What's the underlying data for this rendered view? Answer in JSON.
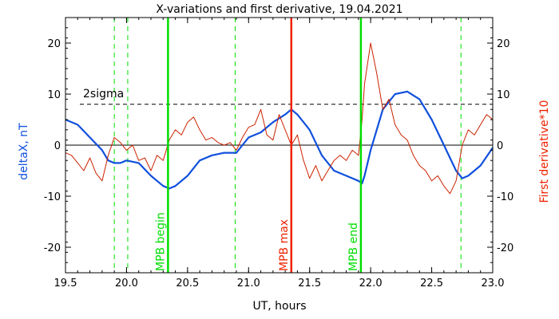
{
  "chart_data": {
    "type": "line",
    "title": "X-variations and first derivative, 19.04.2021",
    "xlabel": "UT, hours",
    "ylabel_left": "deltaX, nT",
    "ylabel_right": "First derivative*10",
    "xlim": [
      19.5,
      23.0
    ],
    "ylim": [
      -25,
      25
    ],
    "x_ticks": [
      "19.5",
      "20.0",
      "20.5",
      "21.0",
      "21.5",
      "22.0",
      "22.5",
      "23.0"
    ],
    "y_ticks_left": [
      "20",
      "10",
      "0",
      "-10",
      "-20"
    ],
    "y_ticks_right": [
      "20",
      "10",
      "0",
      "-10",
      "-20"
    ],
    "sigma_label": "2sigma",
    "sigma_value": 8,
    "zero_line": 0,
    "markers": [
      {
        "label": "MPB begin",
        "x": 20.34,
        "color": "#00dd00"
      },
      {
        "label": "MPB max",
        "x": 21.35,
        "color": "#ee2200"
      },
      {
        "label": "MPB end",
        "x": 21.92,
        "color": "#00dd00"
      }
    ],
    "dashed_verticals": [
      19.9,
      20.01,
      20.89,
      22.74
    ],
    "series": [
      {
        "color": "#1050dd",
        "x": [
          19.5,
          19.6,
          19.7,
          19.8,
          19.85,
          19.9,
          19.95,
          20.0,
          20.1,
          20.2,
          20.3,
          20.35,
          20.4,
          20.5,
          20.6,
          20.7,
          20.8,
          20.9,
          20.95,
          21.0,
          21.1,
          21.2,
          21.3,
          21.35,
          21.4,
          21.5,
          21.6,
          21.7,
          21.8,
          21.9,
          21.93,
          21.95,
          22.0,
          22.1,
          22.2,
          22.3,
          22.4,
          22.5,
          22.6,
          22.7,
          22.75,
          22.8,
          22.9,
          23.0
        ],
        "values": [
          5,
          4,
          1.5,
          -1,
          -3,
          -3.5,
          -3.5,
          -3,
          -3.5,
          -6,
          -8,
          -8.5,
          -8,
          -6,
          -3,
          -2,
          -1.5,
          -1.5,
          0,
          1.5,
          2.5,
          4.5,
          6,
          7,
          6,
          3,
          -2,
          -5,
          -6,
          -7,
          -7.5,
          -6,
          -1,
          7,
          10,
          10.5,
          9,
          5,
          0,
          -5,
          -6.5,
          -6,
          -4,
          -0.5
        ]
      },
      {
        "color": "#cc2200",
        "x": [
          19.5,
          19.55,
          19.6,
          19.65,
          19.7,
          19.75,
          19.8,
          19.85,
          19.9,
          19.95,
          20.0,
          20.05,
          20.1,
          20.15,
          20.2,
          20.25,
          20.3,
          20.35,
          20.4,
          20.45,
          20.5,
          20.55,
          20.6,
          20.65,
          20.7,
          20.75,
          20.8,
          20.85,
          20.9,
          20.95,
          21.0,
          21.05,
          21.1,
          21.15,
          21.2,
          21.25,
          21.3,
          21.35,
          21.4,
          21.45,
          21.5,
          21.55,
          21.6,
          21.65,
          21.7,
          21.75,
          21.8,
          21.85,
          21.9,
          21.93,
          21.95,
          22.0,
          22.05,
          22.1,
          22.15,
          22.2,
          22.25,
          22.3,
          22.35,
          22.4,
          22.45,
          22.5,
          22.55,
          22.6,
          22.65,
          22.7,
          22.75,
          22.8,
          22.85,
          22.9,
          22.95,
          23.0
        ],
        "values": [
          -1.5,
          -2,
          -3.5,
          -5,
          -2.5,
          -5.5,
          -7,
          -2,
          1.5,
          0.5,
          -1,
          0,
          -3,
          -2.5,
          -5,
          -2,
          -3,
          1,
          3,
          2,
          4.5,
          5.5,
          3,
          1,
          1.5,
          0.5,
          0,
          0.5,
          -1,
          1.5,
          3.5,
          4,
          7,
          2,
          1,
          6,
          3,
          0,
          2,
          -3,
          -6.5,
          -4,
          -7,
          -5,
          -3,
          -2,
          -3,
          -1,
          -2,
          5,
          12,
          20,
          14,
          7,
          9,
          4,
          2,
          1,
          -2,
          -4,
          -5,
          -7,
          -6,
          -8,
          -9.5,
          -7,
          0,
          3,
          2,
          4,
          6,
          5
        ]
      }
    ]
  }
}
